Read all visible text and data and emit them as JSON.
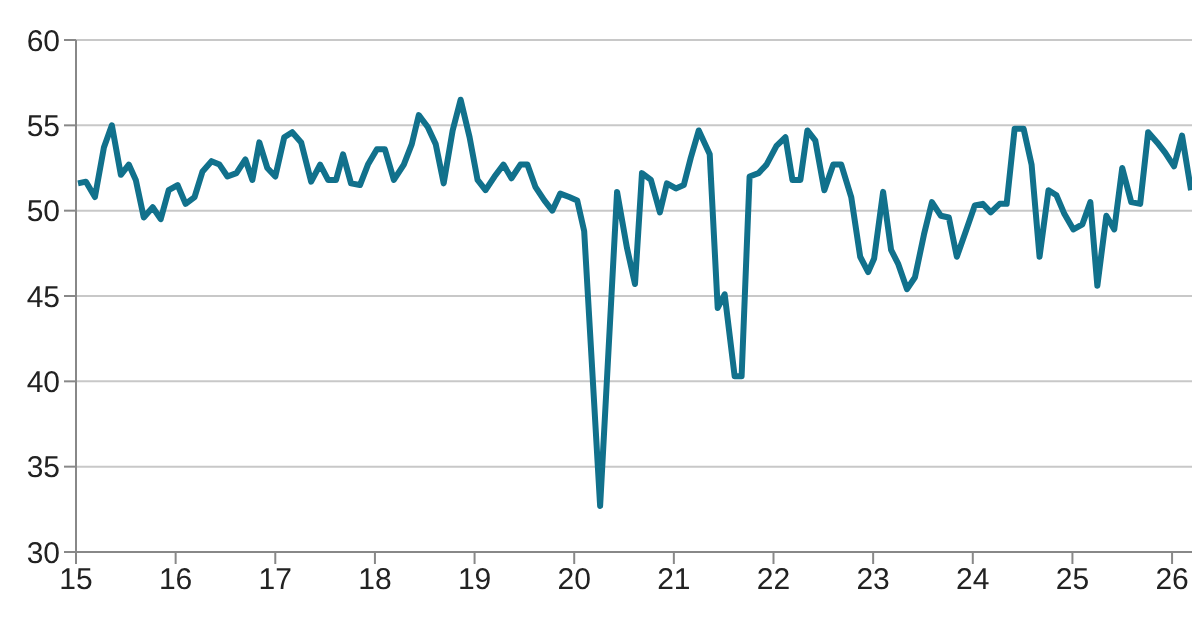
{
  "chart_data": {
    "type": "line",
    "xlim": [
      15,
      26.2
    ],
    "xticks": [
      15,
      16,
      17,
      18,
      19,
      20,
      21,
      22,
      23,
      24,
      25,
      26
    ],
    "ylim": [
      30,
      60
    ],
    "yticks": [
      30,
      35,
      40,
      45,
      50,
      55,
      60
    ],
    "grid": "y",
    "legend": false,
    "marker": "none",
    "line_style": "solid",
    "series": [
      {
        "color": "#11718c",
        "x": [
          15.02,
          15.1,
          15.19,
          15.28,
          15.36,
          15.45,
          15.53,
          15.6,
          15.68,
          15.77,
          15.85,
          15.93,
          16.02,
          16.1,
          16.19,
          16.27,
          16.36,
          16.44,
          16.52,
          16.61,
          16.7,
          16.77,
          16.84,
          16.92,
          17.0,
          17.09,
          17.17,
          17.26,
          17.36,
          17.45,
          17.53,
          17.61,
          17.68,
          17.76,
          17.85,
          17.93,
          18.02,
          18.1,
          18.19,
          18.29,
          18.37,
          18.44,
          18.53,
          18.61,
          18.69,
          18.78,
          18.86,
          18.95,
          19.03,
          19.11,
          19.2,
          19.29,
          19.37,
          19.46,
          19.53,
          19.61,
          19.7,
          19.78,
          19.86,
          19.95,
          20.03,
          20.1,
          20.26,
          20.43,
          20.53,
          20.61,
          20.68,
          20.77,
          20.86,
          20.93,
          21.02,
          21.1,
          21.17,
          21.25,
          21.36,
          21.44,
          21.51,
          21.61,
          21.68,
          21.76,
          21.85,
          21.93,
          22.03,
          22.12,
          22.19,
          22.27,
          22.34,
          22.42,
          22.51,
          22.6,
          22.68,
          22.78,
          22.87,
          22.95,
          23.01,
          23.1,
          23.18,
          23.25,
          23.34,
          23.42,
          23.51,
          23.59,
          23.68,
          23.76,
          23.84,
          23.93,
          24.02,
          24.1,
          24.18,
          24.27,
          24.34,
          24.42,
          24.51,
          24.59,
          24.67,
          24.76,
          24.84,
          24.92,
          25.01,
          25.1,
          25.18,
          25.25,
          25.34,
          25.42,
          25.5,
          25.59,
          25.68,
          25.76,
          25.85,
          25.93,
          26.02,
          26.1,
          26.19
        ],
        "values": [
          51.6,
          51.7,
          50.8,
          53.7,
          55.0,
          52.1,
          52.7,
          51.8,
          49.6,
          50.2,
          49.5,
          51.2,
          51.5,
          50.4,
          50.8,
          52.3,
          52.9,
          52.7,
          52.0,
          52.2,
          53.0,
          51.8,
          54.0,
          52.5,
          52.0,
          54.3,
          54.6,
          54.0,
          51.7,
          52.7,
          51.8,
          51.8,
          53.3,
          51.6,
          51.5,
          52.7,
          53.6,
          53.6,
          51.8,
          52.7,
          53.9,
          55.6,
          54.9,
          53.9,
          51.6,
          54.7,
          56.5,
          54.3,
          51.8,
          51.2,
          52.0,
          52.7,
          51.9,
          52.7,
          52.7,
          51.4,
          50.6,
          50.0,
          51.0,
          50.8,
          50.6,
          48.8,
          32.7,
          51.1,
          47.8,
          45.7,
          52.2,
          51.8,
          49.9,
          51.6,
          51.3,
          51.5,
          53.1,
          54.7,
          53.3,
          44.3,
          45.1,
          40.3,
          40.3,
          52.0,
          52.2,
          52.7,
          53.8,
          54.3,
          51.8,
          51.8,
          54.7,
          54.1,
          51.2,
          52.7,
          52.7,
          50.8,
          47.3,
          46.4,
          47.2,
          51.1,
          47.7,
          46.9,
          45.4,
          46.1,
          48.6,
          50.5,
          49.7,
          49.6,
          47.3,
          48.8,
          50.3,
          50.4,
          49.9,
          50.4,
          50.4,
          54.8,
          54.8,
          52.7,
          47.3,
          51.2,
          50.9,
          49.8,
          48.9,
          49.2,
          50.5,
          45.6,
          49.7,
          48.9,
          52.5,
          50.5,
          50.4,
          54.6,
          54.0,
          53.4,
          52.6,
          54.4,
          51.2
        ]
      }
    ]
  }
}
